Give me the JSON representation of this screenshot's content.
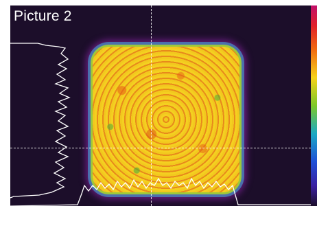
{
  "label": "Picture 2",
  "colors": {
    "background": "#1c0e2a",
    "beam_core": "#f0c020",
    "beam_hot": "#e88a1c",
    "beam_edge": "#9ec83a",
    "halo": "#be28d2",
    "profile_line": "#ffffff"
  }
}
